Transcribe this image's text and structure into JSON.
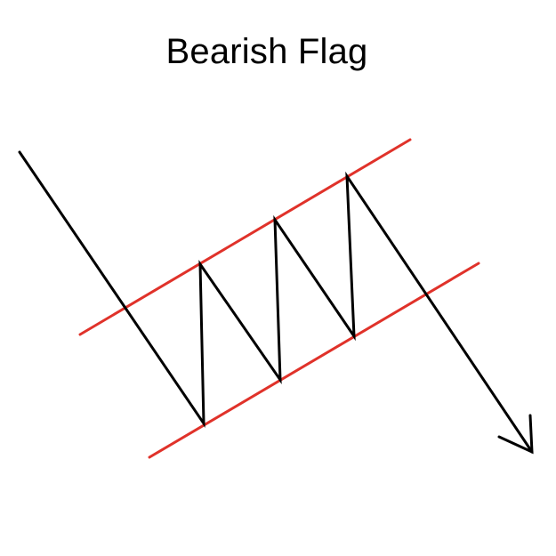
{
  "title": "Bearish Flag",
  "colors": {
    "channel_line": "#e0322a",
    "price_line": "#000000",
    "background": "#ffffff"
  }
}
